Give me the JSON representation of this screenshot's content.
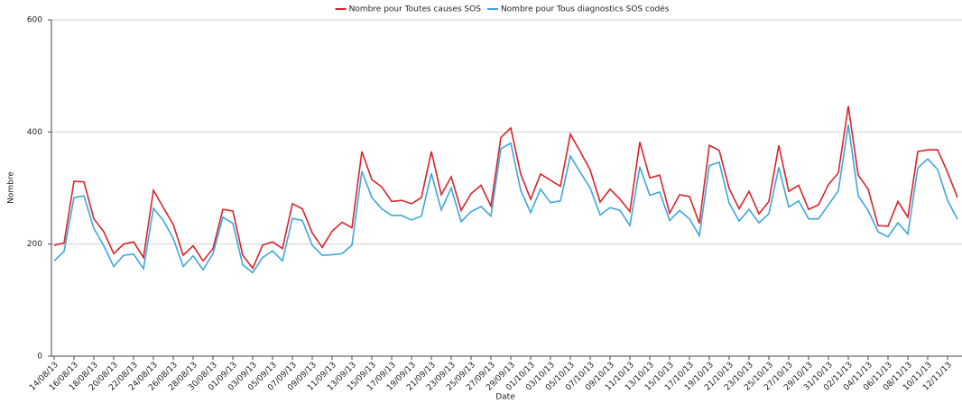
{
  "chart_data": {
    "type": "line",
    "x_label": "Date",
    "y_label": "Nombre",
    "categories": [
      "14/08/13",
      null,
      "16/08/13",
      null,
      "18/08/13",
      null,
      "20/08/13",
      null,
      "22/08/13",
      null,
      "24/08/13",
      null,
      "26/08/13",
      null,
      "28/08/13",
      null,
      "30/08/13",
      null,
      "01/09/13",
      null,
      "03/09/13",
      null,
      "05/09/13",
      null,
      "07/09/13",
      null,
      "09/09/13",
      null,
      "11/09/13",
      null,
      "13/09/13",
      null,
      "15/09/13",
      null,
      "17/09/13",
      null,
      "19/09/13",
      null,
      "21/09/13",
      null,
      "23/09/13",
      null,
      "25/09/13",
      null,
      "27/09/13",
      null,
      "29/09/13",
      null,
      "01/10/13",
      null,
      "03/10/13",
      null,
      "05/10/13",
      null,
      "07/10/13",
      null,
      "09/10/13",
      null,
      "11/10/13",
      null,
      "13/10/13",
      null,
      "15/10/13",
      null,
      "17/10/13",
      null,
      "19/10/13",
      null,
      "21/10/13",
      null,
      "23/10/13",
      null,
      "25/10/13",
      null,
      "27/10/13",
      null,
      "29/10/13",
      null,
      "31/10/13",
      null,
      "02/11/13",
      null,
      "04/11/13",
      null,
      "06/11/13",
      null,
      "08/11/13",
      null,
      "10/11/13",
      null,
      "12/11/13",
      null
    ],
    "series": [
      {
        "name": "Nombre pour Toutes causes SOS",
        "color": "#d9232a",
        "values": [
          198,
          202,
          312,
          311,
          245,
          222,
          183,
          200,
          204,
          176,
          296,
          265,
          235,
          180,
          197,
          170,
          192,
          262,
          259,
          180,
          157,
          198,
          204,
          192,
          272,
          263,
          220,
          194,
          223,
          239,
          229,
          365,
          315,
          302,
          276,
          278,
          272,
          283,
          365,
          288,
          320,
          260,
          290,
          305,
          268,
          390,
          407,
          325,
          280,
          325,
          314,
          303,
          396,
          365,
          332,
          275,
          298,
          280,
          258,
          382,
          318,
          323,
          255,
          288,
          285,
          237,
          376,
          367,
          299,
          263,
          294,
          254,
          276,
          376,
          294,
          305,
          262,
          270,
          306,
          327,
          446,
          323,
          298,
          233,
          232,
          276,
          248,
          365,
          368,
          368,
          328,
          283
        ]
      },
      {
        "name": "Nombre pour Tous diagnostics SOS codés",
        "color": "#3ea6dc",
        "values": [
          170,
          187,
          283,
          286,
          228,
          197,
          160,
          180,
          182,
          156,
          264,
          242,
          210,
          160,
          179,
          154,
          183,
          248,
          237,
          163,
          149,
          176,
          188,
          170,
          246,
          242,
          198,
          180,
          181,
          183,
          198,
          330,
          283,
          263,
          251,
          251,
          243,
          250,
          326,
          261,
          300,
          240,
          258,
          267,
          250,
          370,
          380,
          296,
          256,
          298,
          274,
          277,
          357,
          328,
          300,
          252,
          265,
          260,
          233,
          338,
          287,
          293,
          242,
          260,
          245,
          215,
          340,
          346,
          273,
          241,
          262,
          238,
          254,
          337,
          266,
          277,
          245,
          245,
          270,
          295,
          413,
          286,
          260,
          222,
          213,
          238,
          218,
          336,
          352,
          333,
          278,
          244
        ]
      }
    ],
    "ylim": [
      0,
      600
    ],
    "yticks": [
      0,
      200,
      400,
      600
    ],
    "grid": true
  }
}
